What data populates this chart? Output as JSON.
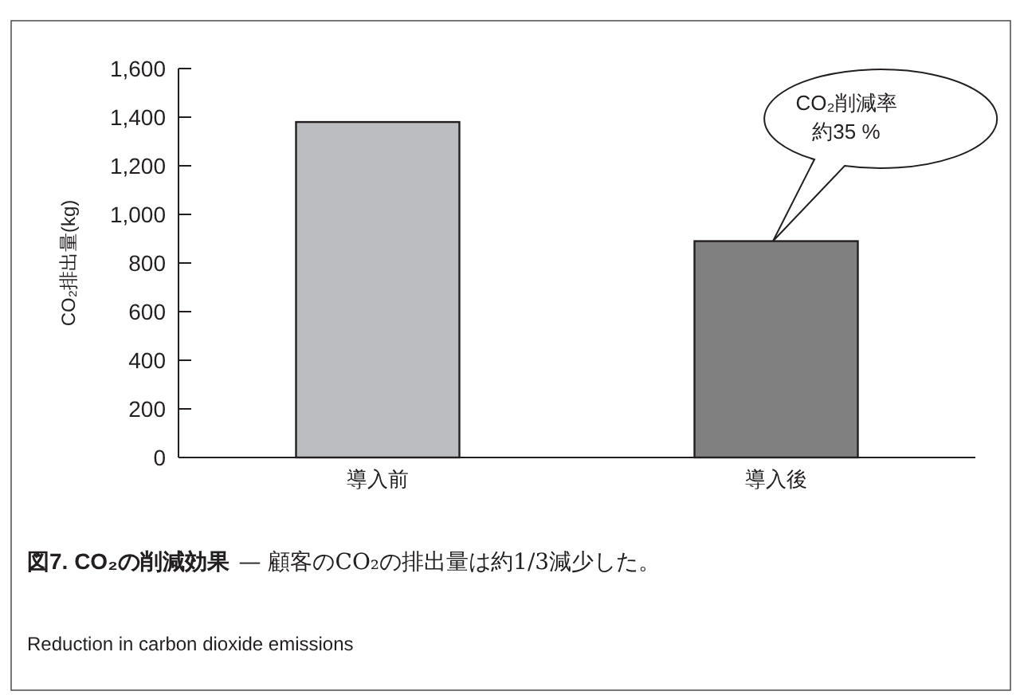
{
  "chart_data": {
    "type": "bar",
    "title": "図7. CO₂の削減効果",
    "subtitle": "— 顧客のCO₂の排出量は約1/3減少した。",
    "ylabel": "CO₂排出量(kg)",
    "categories": [
      "導入前",
      "導入後"
    ],
    "values": [
      1380,
      890
    ],
    "colors": [
      "#bcbdc0",
      "#808080"
    ],
    "ylim": [
      0,
      1600
    ],
    "yticks": [
      0,
      200,
      400,
      600,
      800,
      {
        "value": 1000,
        "label": "1,000"
      },
      {
        "value": 1200,
        "label": "1,200"
      },
      {
        "value": 1400,
        "label": "1,400"
      },
      {
        "value": 1600,
        "label": "1,600"
      }
    ],
    "grid": false,
    "annotations": [
      "CO₂削減率約35 %",
      "Reduction in carbon dioxide emissions"
    ]
  }
}
